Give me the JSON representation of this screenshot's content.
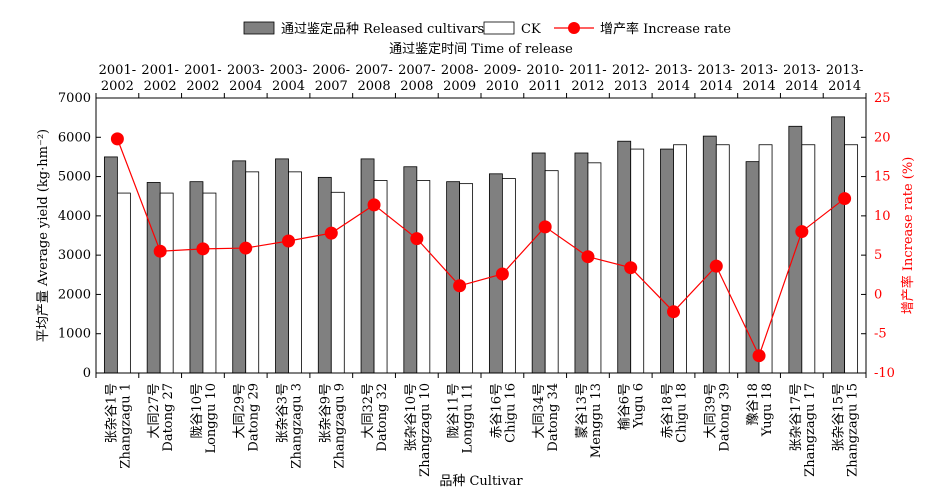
{
  "chart_data": {
    "type": "bar",
    "legend": {
      "placement": "top",
      "items": [
        {
          "label": "通过鉴定品种 Released cultivars",
          "kind": "bar",
          "color": "#808080"
        },
        {
          "label": "CK",
          "kind": "bar",
          "color": "#ffffff"
        },
        {
          "label": "增产率 Increase rate",
          "kind": "line",
          "color": "#ff0000"
        }
      ]
    },
    "top_axis_title": "通过鉴定时间 Time of release",
    "top_labels": [
      [
        "2001-",
        "2002"
      ],
      [
        "2001-",
        "2002"
      ],
      [
        "2001-",
        "2002"
      ],
      [
        "2003-",
        "2004"
      ],
      [
        "2003-",
        "2004"
      ],
      [
        "2006-",
        "2007"
      ],
      [
        "2007-",
        "2008"
      ],
      [
        "2007-",
        "2008"
      ],
      [
        "2008-",
        "2009"
      ],
      [
        "2009-",
        "2010"
      ],
      [
        "2010-",
        "2011"
      ],
      [
        "2011-",
        "2012"
      ],
      [
        "2012-",
        "2013"
      ],
      [
        "2013-",
        "2014"
      ],
      [
        "2013-",
        "2014"
      ],
      [
        "2013-",
        "2014"
      ],
      [
        "2013-",
        "2014"
      ],
      [
        "2013-",
        "2014"
      ]
    ],
    "categories": [
      [
        "张杂谷1号",
        "Zhangzagu 1"
      ],
      [
        "大同27号",
        "Datong 27"
      ],
      [
        "陇谷10号",
        "Longgu 10"
      ],
      [
        "大同29号",
        "Datong 29"
      ],
      [
        "张杂谷3号",
        "Zhangzagu 3"
      ],
      [
        "张杂谷9号",
        "Zhangzagu 9"
      ],
      [
        "大同32号",
        "Datong 32"
      ],
      [
        "张杂谷10号",
        "Zhangzagu 10"
      ],
      [
        "陇谷11号",
        "Longgu 11"
      ],
      [
        "赤谷16号",
        "Chigu 16"
      ],
      [
        "大同34号",
        "Datong 34"
      ],
      [
        "蒙谷13号",
        "Menggu 13"
      ],
      [
        "榆谷6号",
        "Yugu 6"
      ],
      [
        "赤谷18号",
        "Chigu 18"
      ],
      [
        "大同39号",
        "Datong 39"
      ],
      [
        "豫谷18",
        "Yugu 18"
      ],
      [
        "张杂谷17号",
        "Zhangzagu 17"
      ],
      [
        "张杂谷15号",
        "Zhangzagu 15"
      ]
    ],
    "series": [
      {
        "name": "通过鉴定品种 Released cultivars",
        "values": [
          5500,
          4850,
          4870,
          5400,
          5450,
          4980,
          5450,
          5250,
          4870,
          5070,
          5600,
          5600,
          5900,
          5700,
          6030,
          5380,
          6280,
          6520
        ],
        "color": "#808080",
        "axis": "left"
      },
      {
        "name": "CK",
        "values": [
          4580,
          4580,
          4580,
          5120,
          5120,
          4600,
          4900,
          4900,
          4820,
          4950,
          5150,
          5350,
          5700,
          5810,
          5810,
          5810,
          5810,
          5810
        ],
        "color": "#ffffff",
        "axis": "left"
      },
      {
        "name": "增产率 Increase rate",
        "type": "line",
        "values": [
          19.8,
          5.5,
          5.8,
          5.9,
          6.8,
          7.8,
          11.4,
          7.1,
          1.1,
          2.6,
          8.6,
          4.8,
          3.4,
          -2.2,
          3.6,
          -7.8,
          8.0,
          12.2
        ],
        "color": "#ff0000",
        "axis": "right"
      }
    ],
    "xlabel": "品种 Cultivar",
    "ylabel": "平均产量 Average yield (kg·hm⁻²)",
    "y2label": "增产率 Increase rate (%)",
    "ylim": [
      0,
      7000
    ],
    "y2lim": [
      -10,
      25
    ],
    "yticks": [
      0,
      1000,
      2000,
      3000,
      4000,
      5000,
      6000,
      7000
    ],
    "y2ticks": [
      -10,
      -5,
      0,
      5,
      10,
      15,
      20,
      25
    ],
    "grid": false
  }
}
